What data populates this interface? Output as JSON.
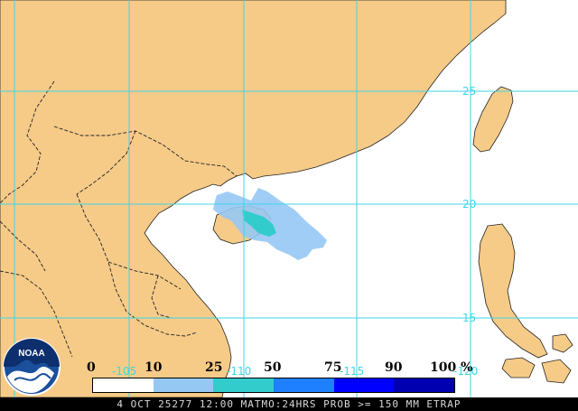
{
  "map": {
    "ocean_color": "#ffffff",
    "land_color": "#f6cb88",
    "border_color": "#222222",
    "gridline_color": "#3fd6e6",
    "lat_labels": [
      "25",
      "20",
      "15"
    ],
    "lon_labels": [
      "-105",
      "-110",
      "-115",
      "-120"
    ],
    "probability_colors": {
      "p10_25": "#96c8f4",
      "p25_50": "#33cccc"
    }
  },
  "legend": {
    "ticks": [
      "0",
      "10",
      "25",
      "50",
      "75",
      "90",
      "100 %"
    ],
    "colors": [
      "#ffffff",
      "#96c8f4",
      "#33cccc",
      "#1e7fff",
      "#0000ff",
      "#0000b0"
    ]
  },
  "logo": {
    "text": "NOAA"
  },
  "caption": "4 OCT 25277 12:00 MATMO:24HRS PROB >= 150 MM ETRAP"
}
